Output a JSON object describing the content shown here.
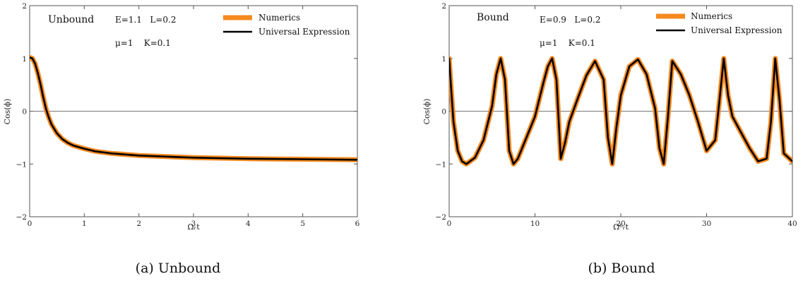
{
  "chart_data": [
    {
      "type": "line",
      "panel_title": "Unbound",
      "params": {
        "line1": "E=1.1   L=0.2",
        "line2": "μ=1    K=0.1"
      },
      "xlabel": "Ωᵣt",
      "ylabel": "Cos(ϕ)",
      "xlim": [
        0,
        6
      ],
      "ylim": [
        -2,
        2
      ],
      "xticks": [
        0,
        1,
        2,
        3,
        4,
        5,
        6
      ],
      "yticks": [
        -2,
        -1,
        0,
        1,
        2
      ],
      "xtick_labels": [
        "0",
        "1",
        "2",
        "3",
        "4",
        "5",
        "6"
      ],
      "ytick_labels": [
        "−2",
        "−1",
        "0",
        "1",
        "2"
      ],
      "grid": false,
      "reference_line_y": 0,
      "legend": "top-right",
      "series": [
        {
          "name": "Numerics",
          "color": "#F5891F",
          "x": [
            0,
            0.05,
            0.1,
            0.15,
            0.2,
            0.25,
            0.3,
            0.35,
            0.4,
            0.5,
            0.6,
            0.7,
            0.8,
            1.0,
            1.2,
            1.5,
            2.0,
            2.5,
            3.0,
            4.0,
            5.0,
            6.0
          ],
          "y": [
            1.02,
            1.0,
            0.9,
            0.72,
            0.5,
            0.26,
            0.04,
            -0.12,
            -0.25,
            -0.42,
            -0.53,
            -0.6,
            -0.65,
            -0.71,
            -0.76,
            -0.8,
            -0.84,
            -0.86,
            -0.88,
            -0.9,
            -0.91,
            -0.92
          ]
        },
        {
          "name": "Universal Expression",
          "color": "#000000",
          "x": [
            0,
            0.05,
            0.1,
            0.15,
            0.2,
            0.25,
            0.3,
            0.35,
            0.4,
            0.5,
            0.6,
            0.7,
            0.8,
            1.0,
            1.2,
            1.5,
            2.0,
            2.5,
            3.0,
            4.0,
            5.0,
            6.0
          ],
          "y": [
            1.02,
            1.0,
            0.9,
            0.72,
            0.5,
            0.26,
            0.04,
            -0.12,
            -0.25,
            -0.42,
            -0.53,
            -0.6,
            -0.65,
            -0.71,
            -0.76,
            -0.8,
            -0.84,
            -0.86,
            -0.88,
            -0.9,
            -0.91,
            -0.92
          ]
        }
      ],
      "caption": "(a) Unbound"
    },
    {
      "type": "line",
      "panel_title": "Bound",
      "params": {
        "line1": "E=0.9   L=0.2",
        "line2": "μ=1    K=0.1"
      },
      "xlabel": "Ωᵇᵣt",
      "ylabel": "Cos(ϕ)",
      "xlim": [
        0,
        40
      ],
      "ylim": [
        -2,
        2
      ],
      "xticks": [
        0,
        10,
        20,
        30,
        40
      ],
      "yticks": [
        -2,
        -1,
        0,
        1,
        2
      ],
      "xtick_labels": [
        "0",
        "10",
        "20",
        "30",
        "40"
      ],
      "ytick_labels": [
        "−2",
        "−1",
        "0",
        "1",
        "2"
      ],
      "grid": false,
      "reference_line_y": 0,
      "legend": "top-right",
      "series": [
        {
          "name": "Numerics",
          "color": "#F5891F",
          "x": [
            0,
            0.2,
            0.5,
            1,
            1.5,
            2,
            3,
            4,
            5,
            5.5,
            6,
            6.5,
            7,
            7.5,
            8,
            9,
            10,
            11,
            11.5,
            12,
            12.5,
            13,
            13.5,
            14,
            15,
            16,
            17,
            18,
            18.5,
            19,
            19.5,
            20,
            21,
            22,
            23,
            24,
            24.5,
            25,
            25.5,
            26,
            27,
            28,
            29,
            30,
            31,
            31.5,
            32,
            32.5,
            33,
            34,
            35,
            36,
            37,
            37.5,
            38,
            38.5,
            39,
            40
          ],
          "y": [
            1.0,
            0.5,
            -0.2,
            -0.75,
            -0.95,
            -1.0,
            -0.88,
            -0.55,
            0.1,
            0.7,
            1.0,
            0.6,
            -0.75,
            -1.0,
            -0.9,
            -0.5,
            -0.1,
            0.55,
            0.85,
            1.0,
            0.6,
            -0.9,
            -0.6,
            -0.2,
            0.25,
            0.68,
            0.95,
            0.6,
            -0.5,
            -1.0,
            -0.3,
            0.3,
            0.85,
            0.98,
            0.7,
            0.05,
            -0.7,
            -1.0,
            -0.1,
            0.95,
            0.7,
            0.3,
            -0.2,
            -0.75,
            -0.55,
            0.2,
            1.0,
            0.3,
            -0.1,
            -0.4,
            -0.7,
            -0.95,
            -0.9,
            -0.2,
            1.0,
            0.2,
            -0.8,
            -0.95
          ]
        },
        {
          "name": "Universal Expression",
          "color": "#000000",
          "x": [
            0,
            0.2,
            0.5,
            1,
            1.5,
            2,
            3,
            4,
            5,
            5.5,
            6,
            6.5,
            7,
            7.5,
            8,
            9,
            10,
            11,
            11.5,
            12,
            12.5,
            13,
            13.5,
            14,
            15,
            16,
            17,
            18,
            18.5,
            19,
            19.5,
            20,
            21,
            22,
            23,
            24,
            24.5,
            25,
            25.5,
            26,
            27,
            28,
            29,
            30,
            31,
            31.5,
            32,
            32.5,
            33,
            34,
            35,
            36,
            37,
            37.5,
            38,
            38.5,
            39,
            40
          ],
          "y": [
            1.0,
            0.5,
            -0.2,
            -0.75,
            -0.95,
            -1.0,
            -0.88,
            -0.55,
            0.1,
            0.7,
            1.0,
            0.6,
            -0.75,
            -1.0,
            -0.9,
            -0.5,
            -0.1,
            0.55,
            0.85,
            1.0,
            0.6,
            -0.9,
            -0.6,
            -0.2,
            0.25,
            0.68,
            0.95,
            0.6,
            -0.5,
            -1.0,
            -0.3,
            0.3,
            0.85,
            0.98,
            0.7,
            0.05,
            -0.7,
            -1.0,
            -0.1,
            0.95,
            0.7,
            0.3,
            -0.2,
            -0.75,
            -0.55,
            0.2,
            1.0,
            0.3,
            -0.1,
            -0.4,
            -0.7,
            -0.95,
            -0.9,
            -0.2,
            1.0,
            0.2,
            -0.8,
            -0.95
          ]
        }
      ],
      "caption": "(b) Bound"
    }
  ]
}
